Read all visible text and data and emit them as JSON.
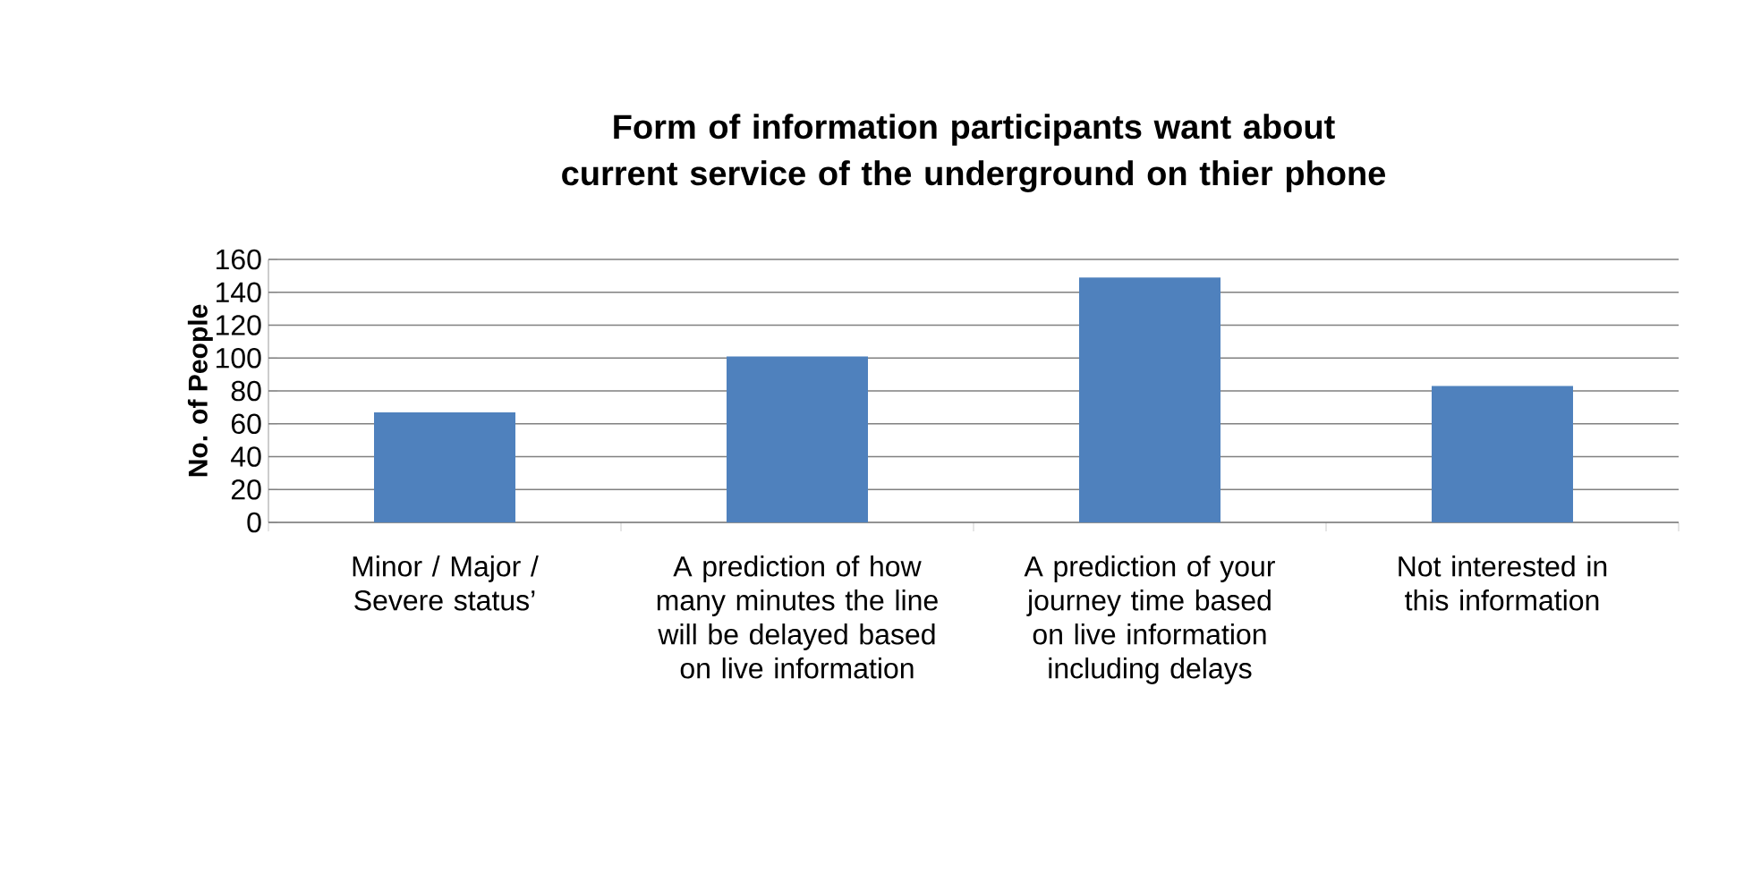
{
  "chart_data": {
    "type": "bar",
    "title": "Form of information participants want about current service of the underground on thier phone",
    "ylabel": "No. of People",
    "categories": [
      "Minor / Major / Severe status’",
      "A prediction of how many minutes the line will be delayed based on live information",
      "A prediction of your journey time based on live information including delays",
      "Not interested in this information"
    ],
    "values": [
      67,
      101,
      149,
      83
    ],
    "color": "#4f81bd",
    "ylim": [
      0,
      160
    ],
    "yticks": [
      0,
      20,
      40,
      60,
      80,
      100,
      120,
      140,
      160
    ],
    "grid": "y"
  }
}
